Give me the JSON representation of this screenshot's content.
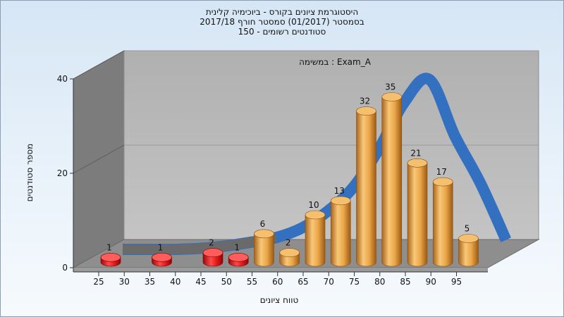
{
  "chart_data": {
    "type": "bar",
    "title_lines": [
      "היסטוגרמת ציונים בקורס - ביוכימיה קלינית",
      "בסמסטר  (01/2017)  סמסטר חורף 2017/18",
      "סטודנטים רשומים - 150"
    ],
    "annotation": "Exam_A : במשימה",
    "xlabel": "טווח ציונים",
    "ylabel": "מספר סטודנטים",
    "x_ticks": [
      "25",
      "30",
      "35",
      "40",
      "45",
      "50",
      "55",
      "60",
      "65",
      "70",
      "75",
      "80",
      "85",
      "90",
      "95"
    ],
    "y_ticks": [
      "0",
      "20",
      "40"
    ],
    "ylim": [
      0,
      40
    ],
    "categories": [
      "25",
      "35",
      "45",
      "50",
      "55",
      "60",
      "65",
      "70",
      "75",
      "80",
      "85",
      "90",
      "95"
    ],
    "values": [
      1,
      1,
      2,
      1,
      6,
      2,
      10,
      13,
      32,
      35,
      21,
      17,
      5
    ],
    "bar_colors": [
      "red",
      "red",
      "red",
      "red",
      "orange",
      "orange",
      "orange",
      "orange",
      "orange",
      "orange",
      "orange",
      "orange",
      "orange"
    ],
    "curve": {
      "x": [
        25,
        30,
        35,
        40,
        45,
        50,
        55,
        60,
        65,
        70,
        75,
        80,
        85,
        90,
        95,
        100
      ],
      "y": [
        0,
        0,
        0,
        0.2,
        0.7,
        1.5,
        2.5,
        4.5,
        8,
        13,
        21,
        31,
        36,
        24,
        14,
        2
      ]
    },
    "colors": {
      "fail": "#e01818",
      "pass": "#e8a850",
      "curve": "#3470c0",
      "wall": "#b4b4b4",
      "side_wall": "#7a7a7a",
      "floor": "#8a8a8a"
    },
    "grid": true,
    "legend": "none"
  }
}
